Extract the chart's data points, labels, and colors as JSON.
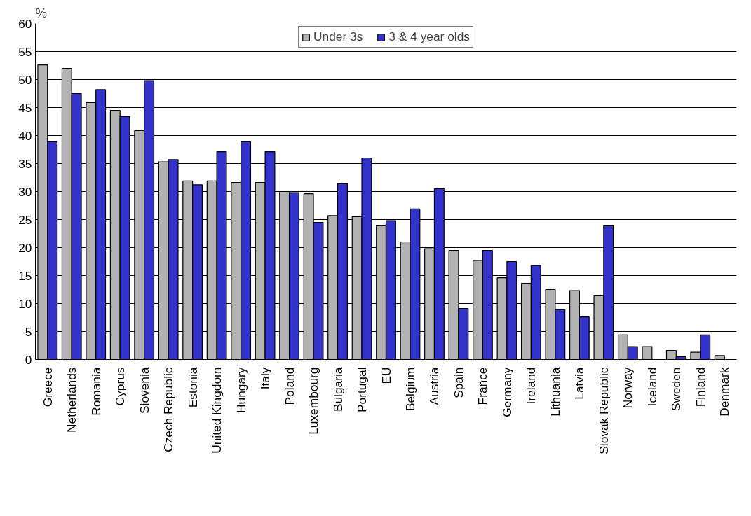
{
  "chart_data": {
    "type": "bar",
    "ylabel": "%",
    "categories": [
      "Greece",
      "Netherlands",
      "Romania",
      "Cyprus",
      "Slovenia",
      "Czech Republic",
      "Estonia",
      "United Kingdom",
      "Hungary",
      "Italy",
      "Poland",
      "Luxembourg",
      "Bulgaria",
      "Portugal",
      "EU",
      "Belgium",
      "Austria",
      "Spain",
      "France",
      "Germany",
      "Ireland",
      "Lithuania",
      "Latvia",
      "Slovak Republic",
      "Norway",
      "Iceland",
      "Sweden",
      "Finland",
      "Denmark"
    ],
    "series": [
      {
        "name": "Under 3s",
        "color": "#b2b2b2",
        "values": [
          52.6,
          52.0,
          45.9,
          44.5,
          40.9,
          35.3,
          31.9,
          31.9,
          31.6,
          31.6,
          30.0,
          29.6,
          25.7,
          25.5,
          23.9,
          21.0,
          19.8,
          19.5,
          17.7,
          14.6,
          13.6,
          12.5,
          12.3,
          11.4,
          4.4,
          2.3,
          1.6,
          1.3,
          0.7
        ]
      },
      {
        "name": "3 & 4 year olds",
        "color": "#3333cc",
        "values": [
          38.9,
          47.5,
          48.2,
          43.4,
          49.8,
          35.7,
          31.2,
          37.1,
          38.9,
          37.1,
          29.8,
          24.5,
          31.4,
          36.0,
          24.8,
          26.9,
          30.5,
          9.1,
          19.5,
          17.5,
          16.8,
          8.9,
          7.6,
          23.9,
          2.3,
          null,
          0.5,
          4.4,
          null
        ]
      }
    ],
    "ylim": [
      0,
      60
    ],
    "yticks": [
      0,
      5,
      10,
      15,
      20,
      25,
      30,
      35,
      40,
      45,
      50,
      55,
      60
    ],
    "grid": "y",
    "legend": "top"
  }
}
